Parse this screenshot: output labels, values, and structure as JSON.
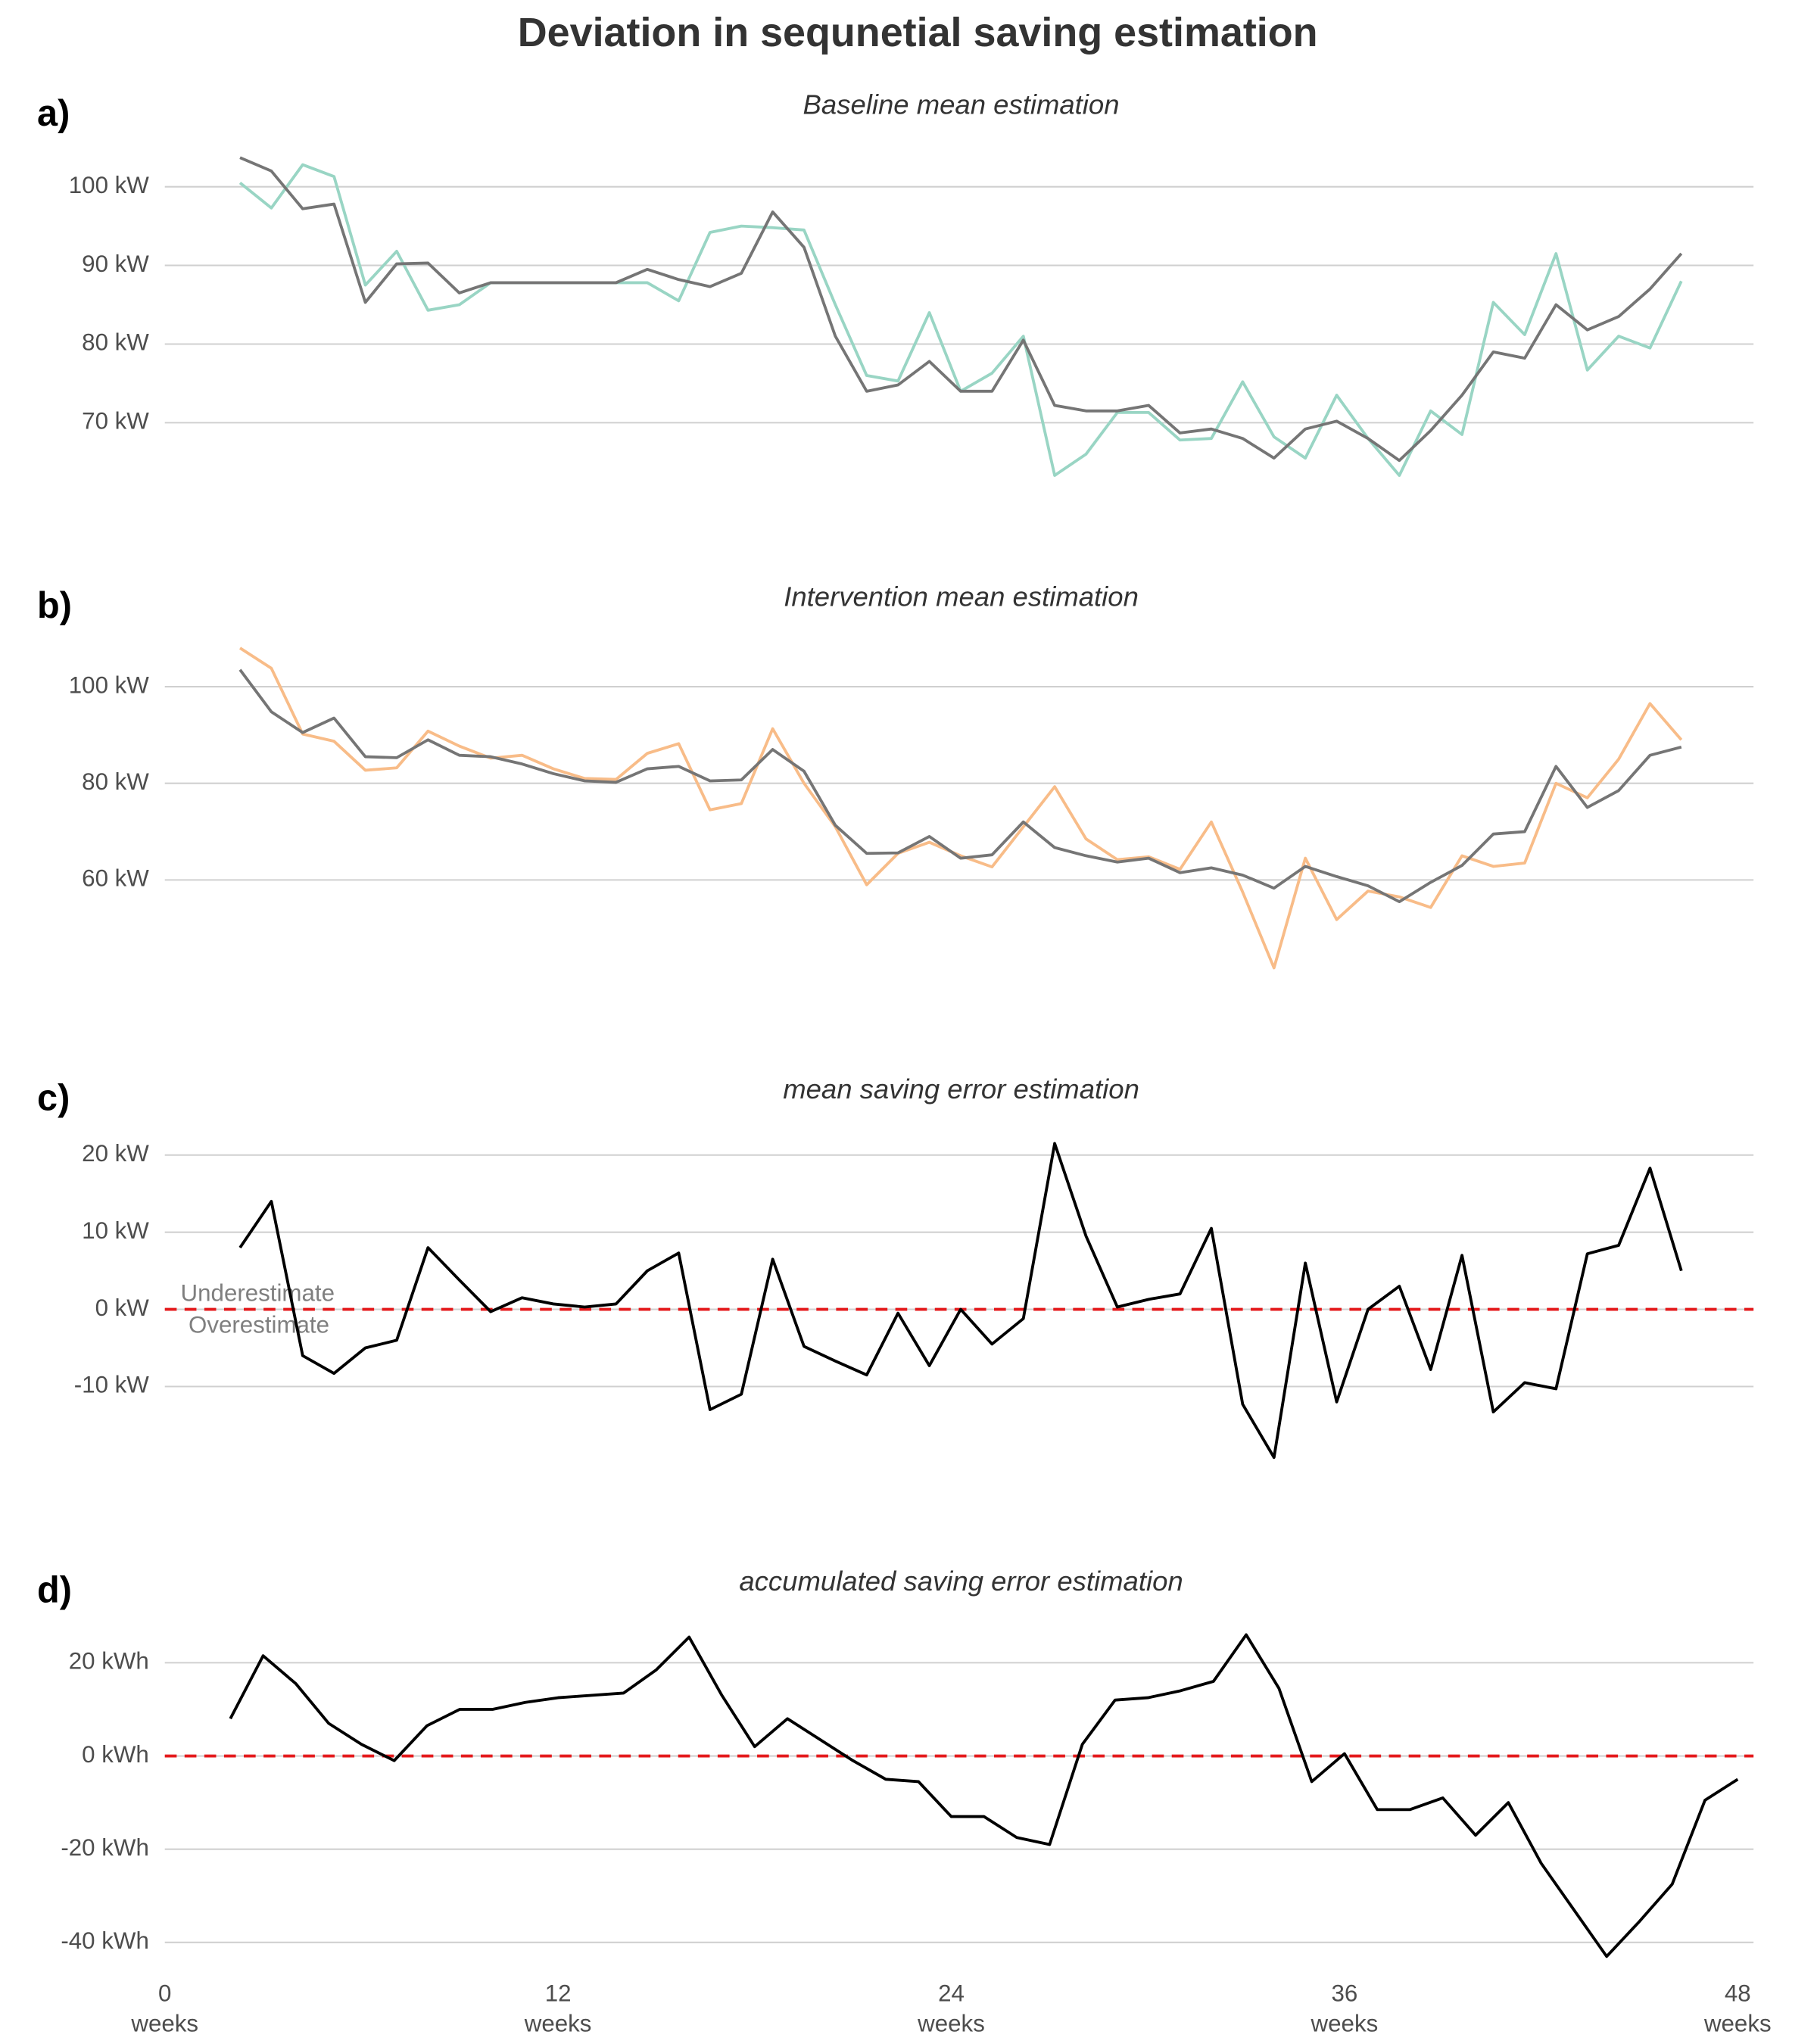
{
  "title": "Deviation in sequnetial saving estimation",
  "chart_data": [
    {
      "type": "line",
      "label": "a)",
      "title": "Baseline mean estimation",
      "x": [
        2,
        3,
        4,
        5,
        6,
        7,
        8,
        9,
        10,
        11,
        12,
        13,
        14,
        15,
        16,
        17,
        18,
        19,
        20,
        21,
        22,
        23,
        24,
        25,
        26,
        27,
        28,
        29,
        30,
        31,
        32,
        33,
        34,
        35,
        36,
        37,
        38,
        39,
        40,
        41,
        42,
        43,
        44,
        45,
        46,
        47,
        48
      ],
      "xlim": [
        -0.4,
        49.8
      ],
      "ylim": [
        62.5,
        104.5
      ],
      "grid": true,
      "yticks": [
        {
          "value": 70,
          "label": "70 kW"
        },
        {
          "value": 80,
          "label": "80 kW"
        },
        {
          "value": 90,
          "label": "90 kW"
        },
        {
          "value": 100,
          "label": "100 kW"
        }
      ],
      "series": [
        {
          "color": "#99d5c4",
          "values": [
            100.5,
            97.3,
            102.8,
            101.3,
            87.5,
            91.8,
            84.3,
            85,
            87.8,
            87.8,
            87.8,
            87.8,
            87.8,
            87.8,
            85.5,
            94.2,
            95,
            94.8,
            94.5,
            85,
            76,
            75.3,
            84,
            74,
            76.3,
            81,
            63.3,
            66,
            71.3,
            71.3,
            67.8,
            68,
            75.2,
            68.2,
            65.5,
            73.5,
            68,
            63.3,
            71.5,
            68.5,
            85.3,
            81.2,
            91.5,
            76.7,
            81,
            79.5,
            88
          ]
        },
        {
          "color": "#757575",
          "values": [
            103.7,
            102,
            97.2,
            97.8,
            85.3,
            90.2,
            90.3,
            86.5,
            87.8,
            87.8,
            87.8,
            87.8,
            87.8,
            89.5,
            88.2,
            87.3,
            89,
            96.8,
            92.3,
            81,
            74,
            74.8,
            77.8,
            74,
            74,
            80.5,
            72.2,
            71.5,
            71.5,
            72.2,
            68.7,
            69.2,
            68,
            65.5,
            69.2,
            70.2,
            68,
            65.2,
            69,
            73.5,
            79,
            78.2,
            85,
            81.8,
            83.5,
            87,
            91.5
          ]
        }
      ]
    },
    {
      "type": "line",
      "label": "b)",
      "title": "Intervention mean estimation",
      "x": [
        2,
        3,
        4,
        5,
        6,
        7,
        8,
        9,
        10,
        11,
        12,
        13,
        14,
        15,
        16,
        17,
        18,
        19,
        20,
        21,
        22,
        23,
        24,
        25,
        26,
        27,
        28,
        29,
        30,
        31,
        32,
        33,
        34,
        35,
        36,
        37,
        38,
        39,
        40,
        41,
        42,
        43,
        44,
        45,
        46,
        47,
        48
      ],
      "xlim": [
        -0.4,
        49.8
      ],
      "ylim": [
        40,
        110
      ],
      "grid": true,
      "yticks": [
        {
          "value": 60,
          "label": "60 kW"
        },
        {
          "value": 80,
          "label": "80 kW"
        },
        {
          "value": 100,
          "label": "100 kW"
        }
      ],
      "series": [
        {
          "color": "#f8bc88",
          "values": [
            108,
            103.8,
            90.2,
            88.7,
            82.7,
            83.2,
            90.8,
            87.7,
            85.2,
            85.8,
            83,
            81,
            80.8,
            86.2,
            88.2,
            74.5,
            75.8,
            91.3,
            80,
            71,
            59,
            65.5,
            67.8,
            65,
            62.7,
            71,
            79.3,
            68.5,
            64.2,
            64.8,
            62.2,
            72,
            57.5,
            41.8,
            64.5,
            51.8,
            57.7,
            56.5,
            54.3,
            65,
            62.8,
            63.5,
            80,
            77,
            85,
            96.5,
            89
          ]
        },
        {
          "color": "#757575",
          "values": [
            103.5,
            94.8,
            90.5,
            93.5,
            85.5,
            85.3,
            89,
            85.8,
            85.5,
            84,
            82,
            80.5,
            80.2,
            83,
            83.5,
            80.5,
            80.7,
            87,
            82.5,
            71.3,
            65.5,
            65.6,
            69,
            64.5,
            65.2,
            72,
            66.7,
            65,
            63.7,
            64.5,
            61.5,
            62.5,
            61,
            58.3,
            62.8,
            60.7,
            58.8,
            55.5,
            59.5,
            63,
            69.5,
            70,
            83.5,
            75,
            78.5,
            85.8,
            87.5
          ]
        }
      ]
    },
    {
      "type": "line",
      "label": "c)",
      "title": "mean saving error estimation",
      "x": [
        2,
        3,
        4,
        5,
        6,
        7,
        8,
        9,
        10,
        11,
        12,
        13,
        14,
        15,
        16,
        17,
        18,
        19,
        20,
        21,
        22,
        23,
        24,
        25,
        26,
        27,
        28,
        29,
        30,
        31,
        32,
        33,
        34,
        35,
        36,
        37,
        38,
        39,
        40,
        41,
        42,
        43,
        44,
        45,
        46,
        47,
        48
      ],
      "xlim": [
        -0.4,
        49.8
      ],
      "ylim": [
        -20.5,
        23
      ],
      "grid": true,
      "yticks": [
        {
          "value": -10,
          "label": "-10 kW"
        },
        {
          "value": 0,
          "label": "0 kW"
        },
        {
          "value": 10,
          "label": "10 kW"
        },
        {
          "value": 20,
          "label": "20 kW"
        }
      ],
      "hline": 0,
      "hline_color": "#e41a1c",
      "annotations": [
        "Underestimate",
        "Overestimate"
      ],
      "series": [
        {
          "color": "#000000",
          "values": [
            8,
            14,
            -6,
            -8.3,
            -5,
            -4,
            8,
            3.8,
            -0.3,
            1.5,
            0.7,
            0.3,
            0.7,
            5,
            7.3,
            -13,
            -11,
            6.5,
            -4.8,
            -6.7,
            -8.5,
            -0.5,
            -7.3,
            0,
            -4.5,
            -1.2,
            21.5,
            9.5,
            0.3,
            1.3,
            2,
            10.5,
            -12.3,
            -19.2,
            6,
            -12,
            0,
            3,
            -7.8,
            7,
            -13.3,
            -9.5,
            -10.3,
            7.2,
            8.3,
            18.3,
            5
          ]
        }
      ]
    },
    {
      "type": "line",
      "label": "d)",
      "title": "accumulated saving error estimation",
      "x": [
        2,
        3,
        4,
        5,
        6,
        7,
        8,
        9,
        10,
        11,
        12,
        13,
        14,
        15,
        16,
        17,
        18,
        19,
        20,
        21,
        22,
        23,
        24,
        25,
        26,
        27,
        28,
        29,
        30,
        31,
        32,
        33,
        34,
        35,
        36,
        37,
        38,
        39,
        40,
        41,
        42,
        43,
        44,
        45,
        46,
        47,
        48
      ],
      "xlim": [
        0,
        48
      ],
      "ylim": [
        -44,
        28
      ],
      "grid": true,
      "yticks": [
        {
          "value": -40,
          "label": "-40 kWh"
        },
        {
          "value": -20,
          "label": "-20 kWh"
        },
        {
          "value": 0,
          "label": "0 kWh"
        },
        {
          "value": 20,
          "label": "20 kWh"
        }
      ],
      "xticks": [
        {
          "value": 0,
          "label": "0 weeks"
        },
        {
          "value": 12,
          "label": "12 weeks"
        },
        {
          "value": 24,
          "label": "24 weeks"
        },
        {
          "value": 36,
          "label": "36 weeks"
        },
        {
          "value": 48,
          "label": "48 weeks"
        }
      ],
      "hline": 0,
      "hline_color": "#e41a1c",
      "series": [
        {
          "color": "#000000",
          "values": [
            8,
            21.5,
            15.5,
            7,
            2.5,
            -1,
            6.5,
            10,
            10,
            11.5,
            12.5,
            13,
            13.5,
            18.5,
            25.5,
            13,
            2,
            8,
            3.5,
            -1,
            -5,
            -5.5,
            -13,
            -13,
            -17.5,
            -19,
            2.5,
            12,
            12.5,
            14,
            16,
            26,
            14.5,
            -5.5,
            0.5,
            -11.5,
            -11.5,
            -9,
            -17,
            -10,
            -23,
            -33,
            -43,
            -35.5,
            -27.5,
            -9.5,
            -5
          ]
        }
      ]
    }
  ]
}
